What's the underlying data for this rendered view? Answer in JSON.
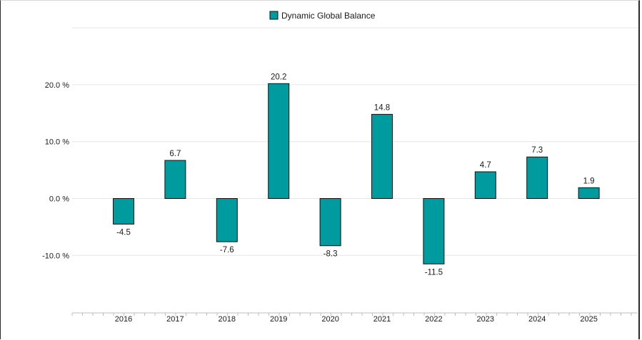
{
  "chart_data": {
    "type": "bar",
    "categories": [
      "2016",
      "2017",
      "2018",
      "2019",
      "2020",
      "2021",
      "2022",
      "2023",
      "2024",
      "2025"
    ],
    "series": [
      {
        "name": "Dynamic Global Balance",
        "values": [
          -4.5,
          6.7,
          -7.6,
          20.2,
          -8.3,
          14.8,
          -11.5,
          4.7,
          7.3,
          1.9
        ],
        "data_labels": [
          "-4.5",
          "6.7",
          "-7.6",
          "20.2",
          "-8.3",
          "14.8",
          "-11.5",
          "4.7",
          "7.3",
          "1.9"
        ]
      }
    ],
    "y_ticks": [
      20,
      10,
      0,
      -10
    ],
    "y_tick_labels": [
      "20.0 %",
      "10.0 %",
      "0.0 %",
      "-10.0 %"
    ],
    "ylim": [
      -20,
      30
    ],
    "grid": true,
    "legend_position": "top-center",
    "colors": {
      "bar": "#009b9e",
      "bar_stroke": "#111111",
      "grid": "#e6e6e6",
      "axis": "#bdbdbd"
    }
  }
}
